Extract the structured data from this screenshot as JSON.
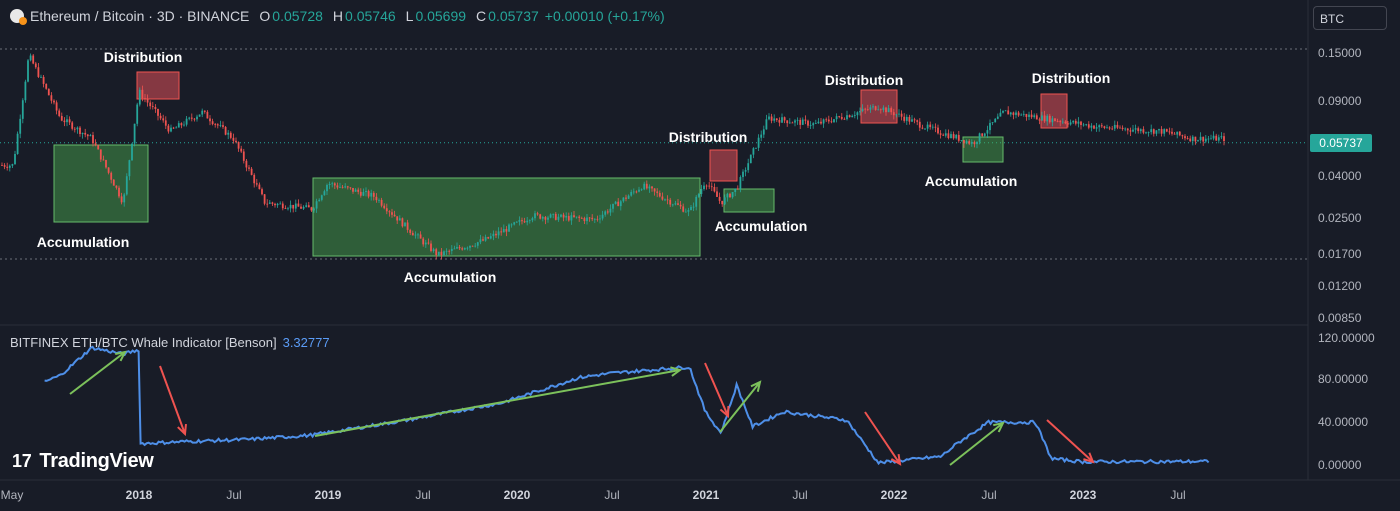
{
  "header": {
    "symbol": "Ethereum / Bitcoin · 3D · BINANCE",
    "open_label": "O",
    "open": "0.05728",
    "high_label": "H",
    "high": "0.05746",
    "low_label": "L",
    "low": "0.05699",
    "close_label": "C",
    "close": "0.05737",
    "change": "+0.00010 (+0.17%)"
  },
  "currency_button": "BTC",
  "indicator": {
    "title": "BITFINEX ETH/BTC Whale Indicator [Benson]",
    "value": "3.32777"
  },
  "price_tag": "0.05737",
  "logo_text": "TradingView",
  "colors": {
    "background": "#181c27",
    "up": "#26a69a",
    "down": "#ef5350",
    "indicator": "#4e8fe8",
    "accumulation": "#4caf50",
    "distribution": "#e0505a",
    "arrow_up": "#7cc15b",
    "arrow_down": "#ef5350"
  },
  "chart_data": [
    {
      "type": "candlestick",
      "title": "Ethereum / Bitcoin · 3D · BINANCE",
      "y_scale": "log",
      "y_ticks": [
        "0.15000",
        "0.09000",
        "0.04000",
        "0.02500",
        "0.01700",
        "0.01200",
        "0.00850"
      ],
      "x_ticks": [
        {
          "label": "May",
          "bold": false
        },
        {
          "label": "2018",
          "bold": true
        },
        {
          "label": "Jul",
          "bold": false
        },
        {
          "label": "2019",
          "bold": true
        },
        {
          "label": "Jul",
          "bold": false
        },
        {
          "label": "2020",
          "bold": true
        },
        {
          "label": "Jul",
          "bold": false
        },
        {
          "label": "2021",
          "bold": true
        },
        {
          "label": "Jul",
          "bold": false
        },
        {
          "label": "2022",
          "bold": true
        },
        {
          "label": "Jul",
          "bold": false
        },
        {
          "label": "2023",
          "bold": true
        },
        {
          "label": "Jul",
          "bold": false
        }
      ],
      "last_price": 0.05737,
      "approx_close_path": [
        [
          "2017-05",
          0.045
        ],
        [
          "2017-06",
          0.148
        ],
        [
          "2017-08",
          0.075
        ],
        [
          "2017-10",
          0.06
        ],
        [
          "2017-12",
          0.03
        ],
        [
          "2018-01",
          0.1
        ],
        [
          "2018-03",
          0.065
        ],
        [
          "2018-05",
          0.08
        ],
        [
          "2018-07",
          0.06
        ],
        [
          "2018-09",
          0.03
        ],
        [
          "2018-12",
          0.028
        ],
        [
          "2019-01",
          0.037
        ],
        [
          "2019-04",
          0.032
        ],
        [
          "2019-06",
          0.023
        ],
        [
          "2019-08",
          0.017
        ],
        [
          "2019-11",
          0.02
        ],
        [
          "2020-02",
          0.026
        ],
        [
          "2020-06",
          0.025
        ],
        [
          "2020-09",
          0.036
        ],
        [
          "2020-12",
          0.027
        ],
        [
          "2021-01",
          0.038
        ],
        [
          "2021-02",
          0.03
        ],
        [
          "2021-03",
          0.035
        ],
        [
          "2021-05",
          0.075
        ],
        [
          "2021-08",
          0.07
        ],
        [
          "2021-12",
          0.085
        ],
        [
          "2022-03",
          0.068
        ],
        [
          "2022-06",
          0.057
        ],
        [
          "2022-08",
          0.08
        ],
        [
          "2022-11",
          0.074
        ],
        [
          "2023-02",
          0.068
        ],
        [
          "2023-06",
          0.065
        ],
        [
          "2023-08",
          0.06
        ]
      ],
      "annotations": [
        {
          "label": "Distribution",
          "kind": "distribution"
        },
        {
          "label": "Accumulation",
          "kind": "accumulation"
        },
        {
          "label": "Accumulation",
          "kind": "accumulation"
        },
        {
          "label": "Distribution",
          "kind": "distribution"
        },
        {
          "label": "Accumulation",
          "kind": "accumulation"
        },
        {
          "label": "Distribution",
          "kind": "distribution"
        },
        {
          "label": "Accumulation",
          "kind": "accumulation"
        },
        {
          "label": "Distribution",
          "kind": "distribution"
        }
      ]
    },
    {
      "type": "line",
      "title": "BITFINEX ETH/BTC Whale Indicator [Benson]",
      "last_value": 3.32777,
      "y_ticks": [
        "120.00000",
        "80.00000",
        "40.00000",
        "0.00000"
      ],
      "ylim": [
        -2,
        128
      ],
      "approx_values": [
        [
          "2017-07",
          78
        ],
        [
          "2017-08",
          84
        ],
        [
          "2017-10",
          110
        ],
        [
          "2017-12",
          104
        ],
        [
          "2018-01",
          108
        ],
        [
          "2018-01",
          20
        ],
        [
          "2018-04",
          22
        ],
        [
          "2018-08",
          24
        ],
        [
          "2018-12",
          28
        ],
        [
          "2019-06",
          42
        ],
        [
          "2019-12",
          58
        ],
        [
          "2020-05",
          82
        ],
        [
          "2020-07",
          86
        ],
        [
          "2020-12",
          92
        ],
        [
          "2021-01",
          50
        ],
        [
          "2021-02",
          30
        ],
        [
          "2021-03",
          75
        ],
        [
          "2021-04",
          36
        ],
        [
          "2021-06",
          50
        ],
        [
          "2021-10",
          42
        ],
        [
          "2021-12",
          2
        ],
        [
          "2022-04",
          8
        ],
        [
          "2022-05",
          20
        ],
        [
          "2022-07",
          40
        ],
        [
          "2022-10",
          40
        ],
        [
          "2022-11",
          6
        ],
        [
          "2023-01",
          3
        ],
        [
          "2023-09",
          3.33
        ]
      ]
    }
  ]
}
